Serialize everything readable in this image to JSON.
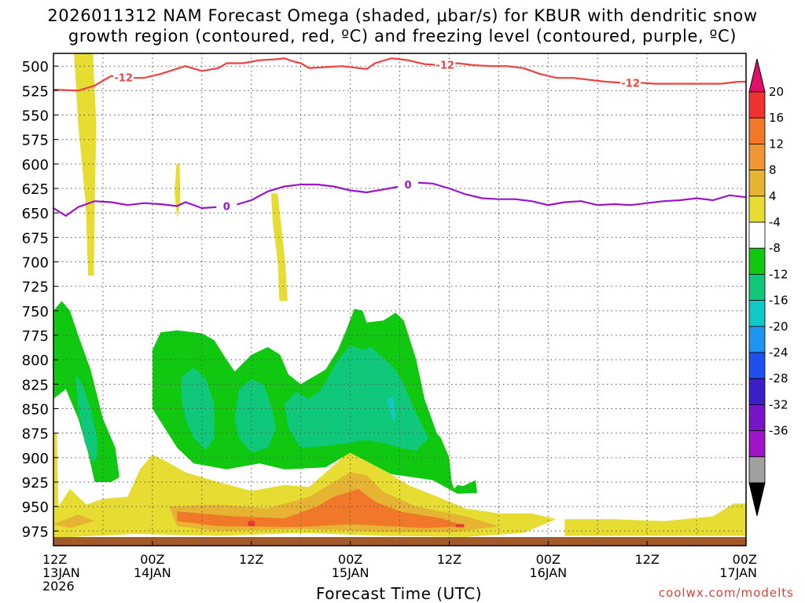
{
  "title_line1": "2026011312 NAM Forecast Omega (shaded, μbar/s) for KBUR with dendritic snow",
  "title_line2": "growth region (contoured, red, ºC) and freezing level (contoured, purple, ºC)",
  "watermark": "coolwx.com/modelts",
  "chart_data": {
    "type": "contour",
    "xlabel": "Forecast Time (UTC)",
    "x_range_hours": [
      0,
      84
    ],
    "x_ticks": [
      {
        "hour": 0,
        "line1": "12Z",
        "line2": "13JAN",
        "line3": "2026"
      },
      {
        "hour": 12,
        "line1": "00Z",
        "line2": "14JAN",
        "line3": ""
      },
      {
        "hour": 24,
        "line1": "12Z",
        "line2": "",
        "line3": ""
      },
      {
        "hour": 36,
        "line1": "00Z",
        "line2": "15JAN",
        "line3": ""
      },
      {
        "hour": 48,
        "line1": "12Z",
        "line2": "",
        "line3": ""
      },
      {
        "hour": 60,
        "line1": "00Z",
        "line2": "16JAN",
        "line3": ""
      },
      {
        "hour": 72,
        "line1": "12Z",
        "line2": "",
        "line3": ""
      },
      {
        "hour": 84,
        "line1": "00Z",
        "line2": "17JAN",
        "line3": ""
      }
    ],
    "y_ticks": [
      "500",
      "525",
      "550",
      "575",
      "600",
      "625",
      "650",
      "675",
      "700",
      "725",
      "750",
      "775",
      "800",
      "825",
      "850",
      "875",
      "900",
      "925",
      "950",
      "975"
    ],
    "y_range_hpa": [
      487,
      990
    ],
    "colorbar": {
      "labels": [
        "20",
        "16",
        "12",
        "8",
        "4",
        "-4",
        "-8",
        "-12",
        "-16",
        "-20",
        "-24",
        "-28",
        "-32",
        "-36"
      ],
      "colors": [
        "#e0106a",
        "#f03232",
        "#f07828",
        "#f09632",
        "#e6b432",
        "#e6dc32",
        "#ffffff",
        "#10c810",
        "#10c87a",
        "#10c8c8",
        "#1e96f0",
        "#1e50f0",
        "#3c1ec8",
        "#7814c8",
        "#a014c8",
        "#a0a0a0",
        "#000000"
      ]
    },
    "series": [
      {
        "name": "dendritic snow growth -12C isotherm",
        "color": "#f04040",
        "labels": [
          "-12",
          "-12",
          "-12"
        ],
        "points": [
          [
            0,
            524
          ],
          [
            3,
            525
          ],
          [
            5,
            520
          ],
          [
            7,
            510
          ],
          [
            9,
            512
          ],
          [
            11,
            512
          ],
          [
            13,
            508
          ],
          [
            16,
            500
          ],
          [
            18,
            505
          ],
          [
            20,
            502
          ],
          [
            21,
            497
          ],
          [
            23,
            497
          ],
          [
            25,
            494
          ],
          [
            27,
            493
          ],
          [
            28,
            492
          ],
          [
            29,
            495
          ],
          [
            30,
            497
          ],
          [
            31,
            502
          ],
          [
            33,
            501
          ],
          [
            35,
            500
          ],
          [
            37,
            502
          ],
          [
            38,
            503
          ],
          [
            39,
            497
          ],
          [
            41,
            492
          ],
          [
            43,
            494
          ],
          [
            45,
            498
          ],
          [
            47,
            499
          ],
          [
            49,
            497
          ],
          [
            51,
            499
          ],
          [
            53,
            500
          ],
          [
            55,
            500
          ],
          [
            57,
            502
          ],
          [
            59,
            508
          ],
          [
            61,
            512
          ],
          [
            63,
            512
          ],
          [
            65,
            514
          ],
          [
            67,
            516
          ],
          [
            69,
            517
          ],
          [
            71,
            517
          ],
          [
            73,
            518
          ],
          [
            75,
            518
          ],
          [
            77,
            518
          ],
          [
            79,
            518
          ],
          [
            81,
            518
          ],
          [
            83,
            516
          ],
          [
            84,
            516
          ]
        ]
      },
      {
        "name": "freezing level 0C",
        "color": "#9b14c8",
        "labels": [
          "0",
          "0"
        ],
        "points": [
          [
            0,
            645
          ],
          [
            1.5,
            653
          ],
          [
            3,
            644
          ],
          [
            5,
            638
          ],
          [
            7,
            639
          ],
          [
            9,
            642
          ],
          [
            11,
            640
          ],
          [
            13,
            641
          ],
          [
            15,
            643
          ],
          [
            16,
            639
          ],
          [
            18,
            645
          ],
          [
            20,
            644
          ],
          [
            22,
            642
          ],
          [
            24,
            637
          ],
          [
            26,
            628
          ],
          [
            28,
            623
          ],
          [
            30,
            621
          ],
          [
            32,
            621
          ],
          [
            34,
            623
          ],
          [
            36,
            627
          ],
          [
            38,
            629
          ],
          [
            40,
            626
          ],
          [
            42,
            623
          ],
          [
            44,
            619
          ],
          [
            46,
            620
          ],
          [
            48,
            625
          ],
          [
            50,
            631
          ],
          [
            52,
            635
          ],
          [
            54,
            636
          ],
          [
            56,
            636
          ],
          [
            58,
            638
          ],
          [
            60,
            642
          ],
          [
            62,
            639
          ],
          [
            64,
            638
          ],
          [
            66,
            642
          ],
          [
            68,
            641
          ],
          [
            70,
            642
          ],
          [
            72,
            640
          ],
          [
            74,
            638
          ],
          [
            76,
            637
          ],
          [
            78,
            635
          ],
          [
            80,
            637
          ],
          [
            82,
            632
          ],
          [
            84,
            634
          ]
        ]
      }
    ],
    "omega_regions": [
      {
        "name": "rising-motion -4 to -8",
        "level": -4,
        "color": "#10c810"
      },
      {
        "name": "rising-motion -8 to -12",
        "level": -8,
        "color": "#10c87a"
      },
      {
        "name": "rising-motion -12 to -16",
        "level": -12,
        "color": "#10c8c8"
      },
      {
        "name": "sinking-motion 4 to 8",
        "level": 4,
        "color": "#e6dc32"
      },
      {
        "name": "sinking-motion 8 to 12",
        "level": 8,
        "color": "#e6b432"
      },
      {
        "name": "sinking-motion 12 to 16",
        "level": 12,
        "color": "#f07828"
      },
      {
        "name": "sinking-motion 16 to 20",
        "level": 16,
        "color": "#f03232"
      }
    ]
  }
}
